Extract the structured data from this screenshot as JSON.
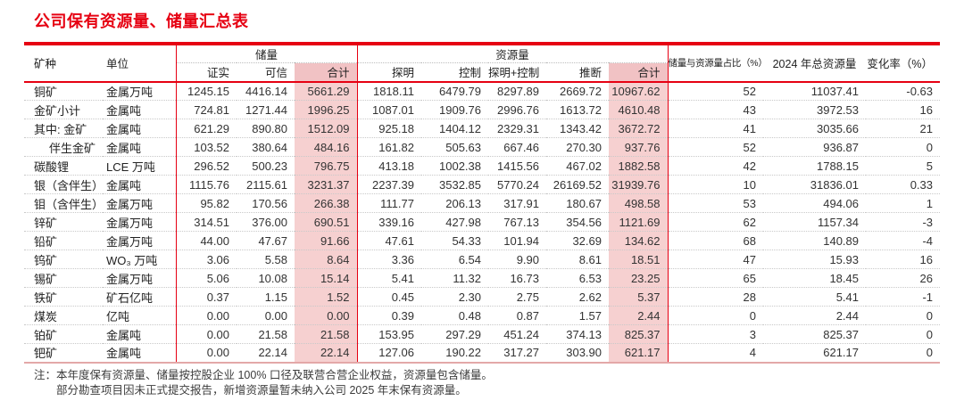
{
  "title": "公司保有资源量、储量汇总表",
  "colors": {
    "accent_red": "#e60012",
    "pink_column": "#f6d0d0",
    "pink_header": "#f1c2c4",
    "bottom_line": "#e3a8a8"
  },
  "table": {
    "headers": {
      "mineral": "矿种",
      "unit": "单位",
      "reserves_group": "储量",
      "resources_group": "资源量",
      "reserves_sub": [
        "证实",
        "可信",
        "合计"
      ],
      "resources_sub": [
        "探明",
        "控制",
        "探明+控制",
        "推断",
        "合计"
      ],
      "ratio": "储量与资源量占比（%）",
      "total_2024": "2024 年总资源量",
      "change": "变化率（%）"
    },
    "rows": [
      {
        "mineral": "铜矿",
        "indent": false,
        "unit": "金属万吨",
        "values": [
          "1245.15",
          "4416.14",
          "5661.29",
          "1818.11",
          "6479.79",
          "8297.89",
          "2669.72",
          "10967.62",
          "52",
          "11037.41",
          "-0.63"
        ]
      },
      {
        "mineral": "金矿小计",
        "indent": false,
        "unit": "金属吨",
        "values": [
          "724.81",
          "1271.44",
          "1996.25",
          "1087.01",
          "1909.76",
          "2996.76",
          "1613.72",
          "4610.48",
          "43",
          "3972.53",
          "16"
        ]
      },
      {
        "mineral": "其中: 金矿",
        "indent": false,
        "unit": "金属吨",
        "values": [
          "621.29",
          "890.80",
          "1512.09",
          "925.18",
          "1404.12",
          "2329.31",
          "1343.42",
          "3672.72",
          "41",
          "3035.66",
          "21"
        ]
      },
      {
        "mineral": "伴生金矿",
        "indent": true,
        "unit": "金属吨",
        "values": [
          "103.52",
          "380.64",
          "484.16",
          "161.82",
          "505.63",
          "667.46",
          "270.30",
          "937.76",
          "52",
          "936.87",
          "0"
        ]
      },
      {
        "mineral": "碳酸锂",
        "indent": false,
        "unit": "LCE 万吨",
        "values": [
          "296.52",
          "500.23",
          "796.75",
          "413.18",
          "1002.38",
          "1415.56",
          "467.02",
          "1882.58",
          "42",
          "1788.15",
          "5"
        ]
      },
      {
        "mineral": "银（含伴生）",
        "indent": false,
        "unit": "金属吨",
        "values": [
          "1115.76",
          "2115.61",
          "3231.37",
          "2237.39",
          "3532.85",
          "5770.24",
          "26169.52",
          "31939.76",
          "10",
          "31836.01",
          "0.33"
        ]
      },
      {
        "mineral": "钼（含伴生）",
        "indent": false,
        "unit": "金属万吨",
        "values": [
          "95.82",
          "170.56",
          "266.38",
          "111.77",
          "206.13",
          "317.91",
          "180.67",
          "498.58",
          "53",
          "494.06",
          "1"
        ]
      },
      {
        "mineral": "锌矿",
        "indent": false,
        "unit": "金属万吨",
        "values": [
          "314.51",
          "376.00",
          "690.51",
          "339.16",
          "427.98",
          "767.13",
          "354.56",
          "1121.69",
          "62",
          "1157.34",
          "-3"
        ]
      },
      {
        "mineral": "铅矿",
        "indent": false,
        "unit": "金属万吨",
        "values": [
          "44.00",
          "47.67",
          "91.66",
          "47.61",
          "54.33",
          "101.94",
          "32.69",
          "134.62",
          "68",
          "140.89",
          "-4"
        ]
      },
      {
        "mineral": "钨矿",
        "indent": false,
        "unit": "WO₃ 万吨",
        "values": [
          "3.06",
          "5.58",
          "8.64",
          "3.36",
          "6.54",
          "9.90",
          "8.61",
          "18.51",
          "47",
          "15.93",
          "16"
        ]
      },
      {
        "mineral": "锡矿",
        "indent": false,
        "unit": "金属万吨",
        "values": [
          "5.06",
          "10.08",
          "15.14",
          "5.41",
          "11.32",
          "16.73",
          "6.53",
          "23.25",
          "65",
          "18.45",
          "26"
        ]
      },
      {
        "mineral": "铁矿",
        "indent": false,
        "unit": "矿石亿吨",
        "values": [
          "0.37",
          "1.15",
          "1.52",
          "0.45",
          "2.30",
          "2.75",
          "2.62",
          "5.37",
          "28",
          "5.41",
          "-1"
        ]
      },
      {
        "mineral": "煤炭",
        "indent": false,
        "unit": "亿吨",
        "values": [
          "0.00",
          "0.00",
          "0.00",
          "0.39",
          "0.48",
          "0.87",
          "1.57",
          "2.44",
          "0",
          "2.44",
          "0"
        ]
      },
      {
        "mineral": "铂矿",
        "indent": false,
        "unit": "金属吨",
        "values": [
          "0.00",
          "21.58",
          "21.58",
          "153.95",
          "297.29",
          "451.24",
          "374.13",
          "825.37",
          "3",
          "825.37",
          "0"
        ]
      },
      {
        "mineral": "钯矿",
        "indent": false,
        "unit": "金属吨",
        "values": [
          "0.00",
          "22.14",
          "22.14",
          "127.06",
          "190.22",
          "317.27",
          "303.90",
          "621.17",
          "4",
          "621.17",
          "0"
        ]
      }
    ]
  },
  "notes": [
    "注：本年度保有资源量、储量按控股企业 100% 口径及联营合营企业权益，资源量包含储量。",
    "部分勘查项目因未正式提交报告，新增资源量暂未纳入公司 2025 年末保有资源量。"
  ]
}
